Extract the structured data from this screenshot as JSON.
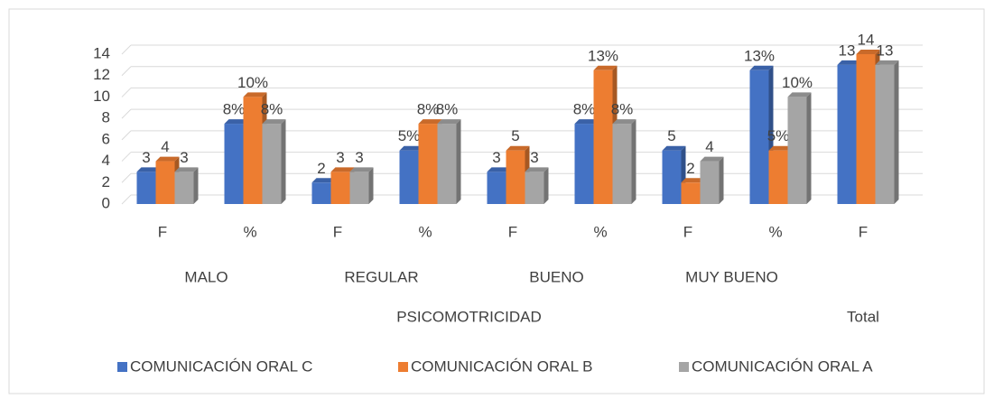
{
  "chart_data": {
    "type": "bar3d",
    "categories": [
      "F",
      "%",
      "F",
      "%",
      "F",
      "%",
      "F",
      "%",
      "F"
    ],
    "groups": [
      "MALO",
      "REGULAR",
      "BUENO",
      "MUY BUENO"
    ],
    "supergroups": [
      "PSICOMOTRICIDAD",
      "Total"
    ],
    "series": [
      {
        "name": "COMUNICACIÓN ORAL C",
        "color": "#4472c4",
        "values": [
          3,
          7.5,
          2,
          5,
          3,
          7.5,
          5,
          12.5,
          13
        ],
        "value_labels": [
          "3",
          "8%",
          "2",
          "5%",
          "3",
          "8%",
          "5",
          "13%",
          "13"
        ]
      },
      {
        "name": "COMUNICACIÓN ORAL B",
        "color": "#ed7d31",
        "values": [
          4,
          10,
          3,
          7.5,
          5,
          12.5,
          2,
          5,
          14
        ],
        "value_labels": [
          "4",
          "10%",
          "3",
          "8%",
          "5",
          "13%",
          "2",
          "5%",
          "14"
        ]
      },
      {
        "name": "COMUNICACIÓN ORAL A",
        "color": "#a5a5a5",
        "values": [
          3,
          7.5,
          3,
          7.5,
          3,
          7.5,
          4,
          10,
          13
        ],
        "value_labels": [
          "3",
          "8%",
          "3",
          "8%",
          "3",
          "8%",
          "4",
          "10%",
          "13"
        ]
      }
    ],
    "ylim": [
      0,
      14
    ],
    "yticks": [
      0,
      2,
      4,
      6,
      8,
      10,
      12,
      14
    ],
    "grid": true,
    "legend": "bottom"
  }
}
